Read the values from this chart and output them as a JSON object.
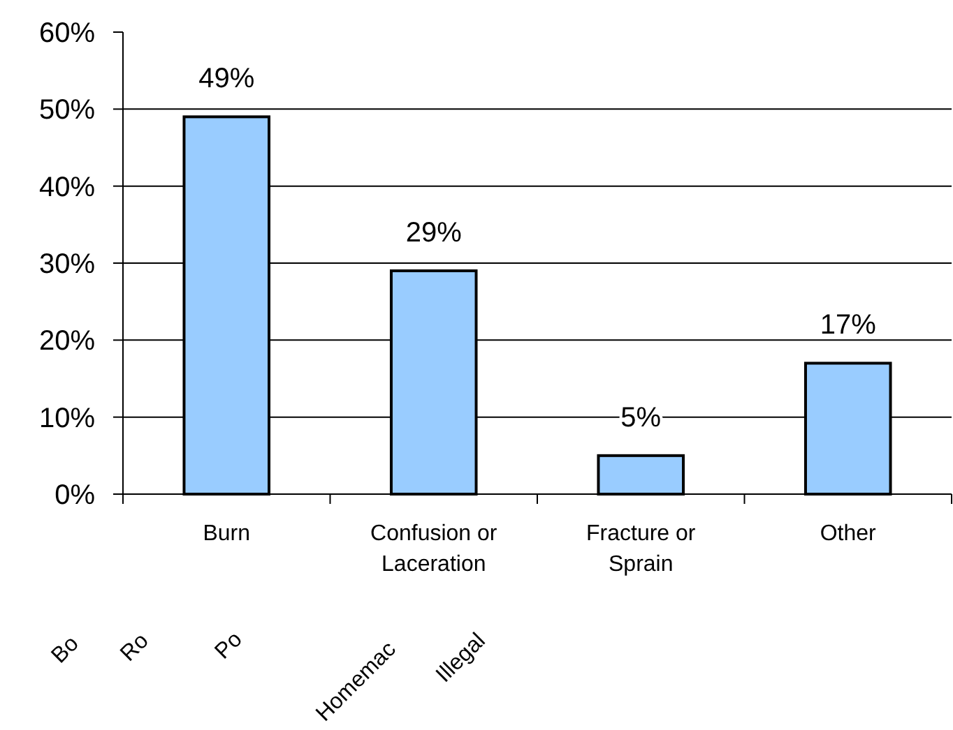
{
  "chart_data": {
    "type": "bar",
    "categories": [
      "Burn",
      "Confusion or Laceration",
      "Fracture or Sprain",
      "Other"
    ],
    "values": [
      49,
      29,
      5,
      17
    ],
    "color": "#99ccff",
    "value_labels": [
      "49%",
      "29%",
      "5%",
      "17%"
    ],
    "ylim": [
      0,
      60
    ],
    "yticks": [
      {
        "value": 0,
        "label": "0%"
      },
      {
        "value": 10,
        "label": "10%"
      },
      {
        "value": 20,
        "label": "20%"
      },
      {
        "value": 30,
        "label": "30%"
      },
      {
        "value": 40,
        "label": "40%"
      },
      {
        "value": 50,
        "label": "50%"
      },
      {
        "value": 60,
        "label": "60%"
      }
    ],
    "grid": "y",
    "annotations": [
      "Bo",
      "Ro",
      "Po",
      "Homemac",
      "Illegal"
    ]
  }
}
